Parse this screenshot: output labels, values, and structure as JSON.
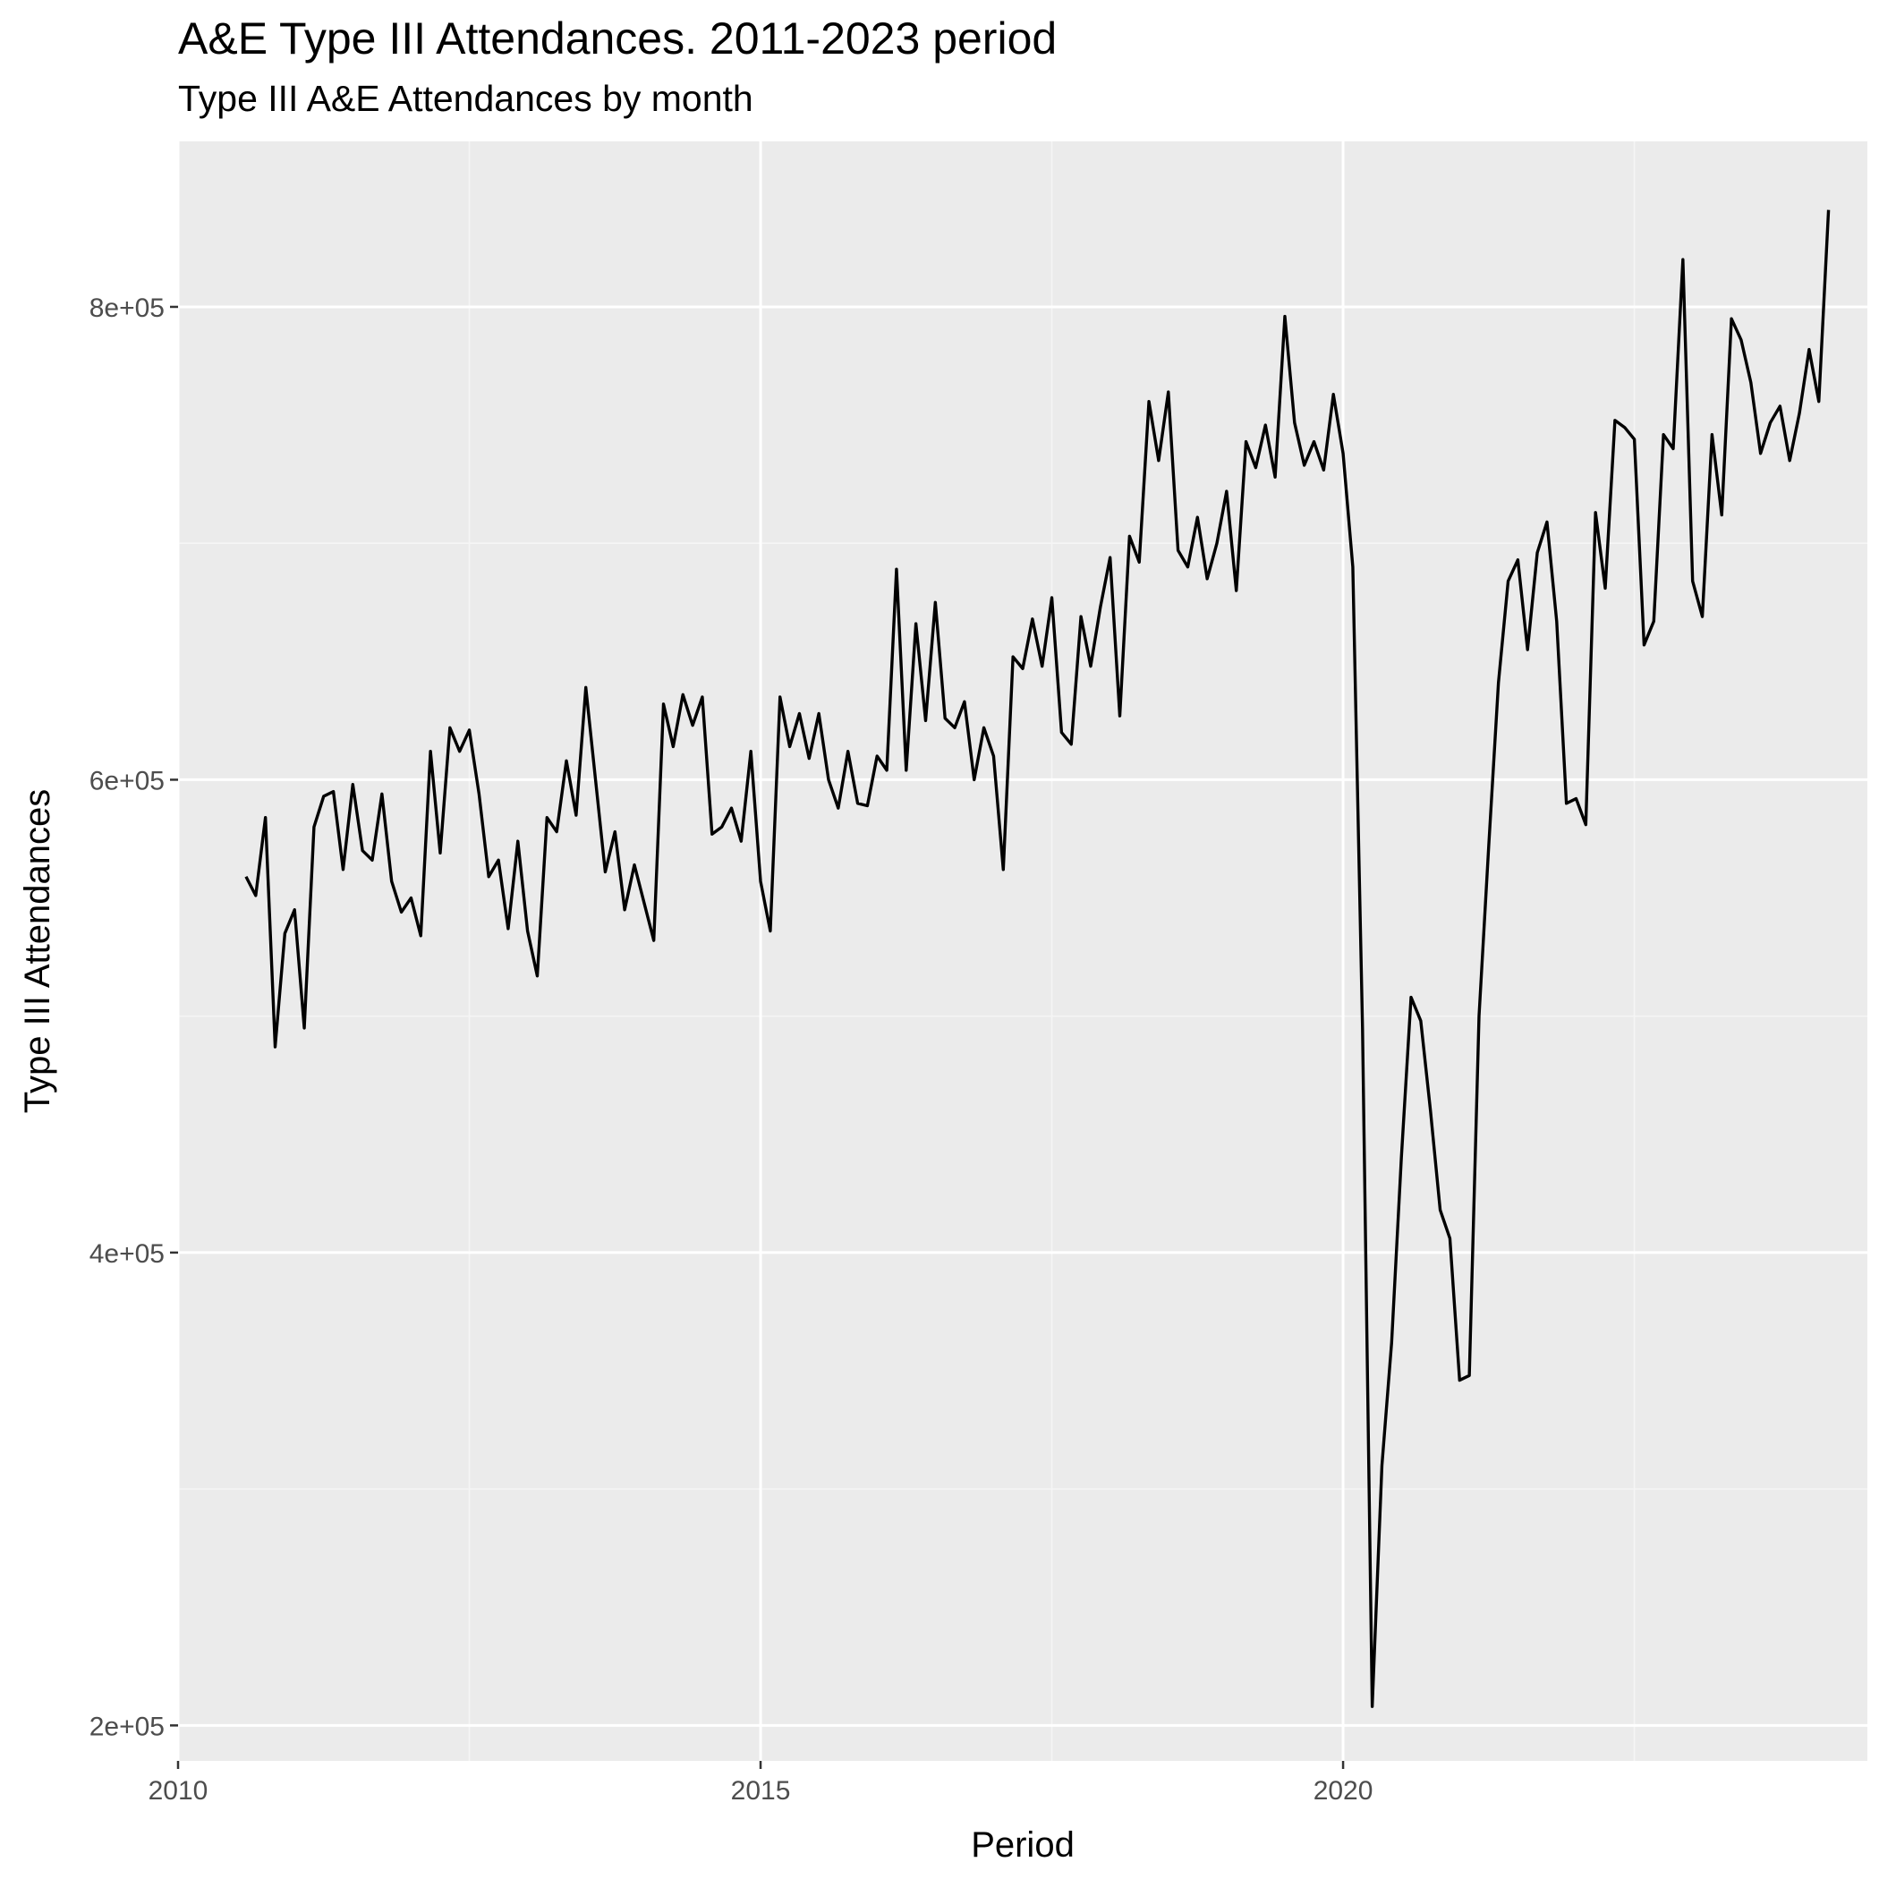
{
  "colors": {
    "panel_background": "#ebebeb",
    "grid_major": "#ffffff",
    "grid_minor": "#f5f5f5",
    "line": "#000000",
    "tick_text": "#4d4d4d",
    "title_text": "#000000"
  },
  "chart_data": {
    "type": "line",
    "title": "A&E Type III Attendances. 2011-2023 period",
    "subtitle": "Type III A&E Attendances by month",
    "xlabel": "Period",
    "ylabel": "Type III Attendances",
    "xlim": [
      2010,
      2024.5
    ],
    "ylim": [
      185000,
      870000
    ],
    "x_ticks": [
      2010,
      2015,
      2020
    ],
    "x_tick_labels": [
      "2010",
      "2015",
      "2020"
    ],
    "y_ticks": [
      200000,
      400000,
      600000,
      800000
    ],
    "y_tick_labels": [
      "2e+05",
      "4e+05",
      "6e+05",
      "8e+05"
    ],
    "grid": true,
    "legend": "none",
    "series": [
      {
        "x": [
          "2010-08",
          "2010-09",
          "2010-10",
          "2010-11",
          "2010-12",
          "2011-01",
          "2011-02",
          "2011-03",
          "2011-04",
          "2011-05",
          "2011-06",
          "2011-07",
          "2011-08",
          "2011-09",
          "2011-10",
          "2011-11",
          "2011-12",
          "2012-01",
          "2012-02",
          "2012-03",
          "2012-04",
          "2012-05",
          "2012-06",
          "2012-07",
          "2012-08",
          "2012-09",
          "2012-10",
          "2012-11",
          "2012-12",
          "2013-01",
          "2013-02",
          "2013-03",
          "2013-04",
          "2013-05",
          "2013-06",
          "2013-07",
          "2013-08",
          "2013-09",
          "2013-10",
          "2013-11",
          "2013-12",
          "2014-01",
          "2014-02",
          "2014-03",
          "2014-04",
          "2014-05",
          "2014-06",
          "2014-07",
          "2014-08",
          "2014-09",
          "2014-10",
          "2014-11",
          "2014-12",
          "2015-01",
          "2015-02",
          "2015-03",
          "2015-04",
          "2015-05",
          "2015-06",
          "2015-07",
          "2015-08",
          "2015-09",
          "2015-10",
          "2015-11",
          "2015-12",
          "2016-01",
          "2016-02",
          "2016-03",
          "2016-04",
          "2016-05",
          "2016-06",
          "2016-07",
          "2016-08",
          "2016-09",
          "2016-10",
          "2016-11",
          "2016-12",
          "2017-01",
          "2017-02",
          "2017-03",
          "2017-04",
          "2017-05",
          "2017-06",
          "2017-07",
          "2017-08",
          "2017-09",
          "2017-10",
          "2017-11",
          "2017-12",
          "2018-01",
          "2018-02",
          "2018-03",
          "2018-04",
          "2018-05",
          "2018-06",
          "2018-07",
          "2018-08",
          "2018-09",
          "2018-10",
          "2018-11",
          "2018-12",
          "2019-01",
          "2019-02",
          "2019-03",
          "2019-04",
          "2019-05",
          "2019-06",
          "2019-07",
          "2019-08",
          "2019-09",
          "2019-10",
          "2019-11",
          "2019-12",
          "2020-01",
          "2020-02",
          "2020-03",
          "2020-04",
          "2020-05",
          "2020-06",
          "2020-07",
          "2020-08",
          "2020-09",
          "2020-10",
          "2020-11",
          "2020-12",
          "2021-01",
          "2021-02",
          "2021-03",
          "2021-04",
          "2021-05",
          "2021-06",
          "2021-07",
          "2021-08",
          "2021-09",
          "2021-10",
          "2021-11",
          "2021-12",
          "2022-01",
          "2022-02",
          "2022-03",
          "2022-04",
          "2022-05",
          "2022-06",
          "2022-07",
          "2022-08",
          "2022-09",
          "2022-10",
          "2022-11",
          "2022-12",
          "2023-01",
          "2023-02",
          "2023-03",
          "2023-04",
          "2023-05",
          "2023-06",
          "2023-07",
          "2023-08",
          "2023-09",
          "2023-10",
          "2023-11",
          "2023-12",
          "2024-01",
          "2024-02",
          "2024-03"
        ],
        "y": [
          559000,
          551000,
          584000,
          487000,
          535000,
          545000,
          495000,
          580000,
          593000,
          595000,
          562000,
          598000,
          570000,
          566000,
          594000,
          557000,
          544000,
          550000,
          534000,
          612000,
          569000,
          622000,
          612000,
          621000,
          594000,
          559000,
          566000,
          537000,
          574000,
          536000,
          517000,
          584000,
          578000,
          608000,
          585000,
          639000,
          600000,
          561000,
          578000,
          545000,
          564000,
          548000,
          532000,
          632000,
          614000,
          636000,
          623000,
          635000,
          577000,
          580000,
          588000,
          574000,
          612000,
          557000,
          536000,
          635000,
          614000,
          628000,
          609000,
          628000,
          600000,
          588000,
          612000,
          590000,
          589000,
          610000,
          604000,
          689000,
          604000,
          666000,
          625000,
          675000,
          626000,
          622000,
          633000,
          600000,
          622000,
          610000,
          562000,
          652000,
          647000,
          668000,
          648000,
          677000,
          620000,
          615000,
          669000,
          648000,
          673000,
          694000,
          627000,
          703000,
          692000,
          760000,
          735000,
          764000,
          697000,
          690000,
          711000,
          685000,
          700000,
          722000,
          680000,
          743000,
          732000,
          750000,
          728000,
          796000,
          751000,
          733000,
          743000,
          731000,
          763000,
          738000,
          690000,
          495000,
          208000,
          310000,
          362000,
          440000,
          508000,
          498000,
          460000,
          418000,
          406000,
          346000,
          348000,
          500000,
          572000,
          641000,
          684000,
          693000,
          655000,
          696000,
          709000,
          667000,
          590000,
          592000,
          581000,
          713000,
          681000,
          752000,
          749000,
          744000,
          657000,
          667000,
          746000,
          740000,
          820000,
          684000,
          669000,
          746000,
          712000,
          795000,
          786000,
          768000,
          738000,
          751000,
          758000,
          735000,
          755000,
          782000,
          760000,
          841000
        ]
      }
    ]
  }
}
